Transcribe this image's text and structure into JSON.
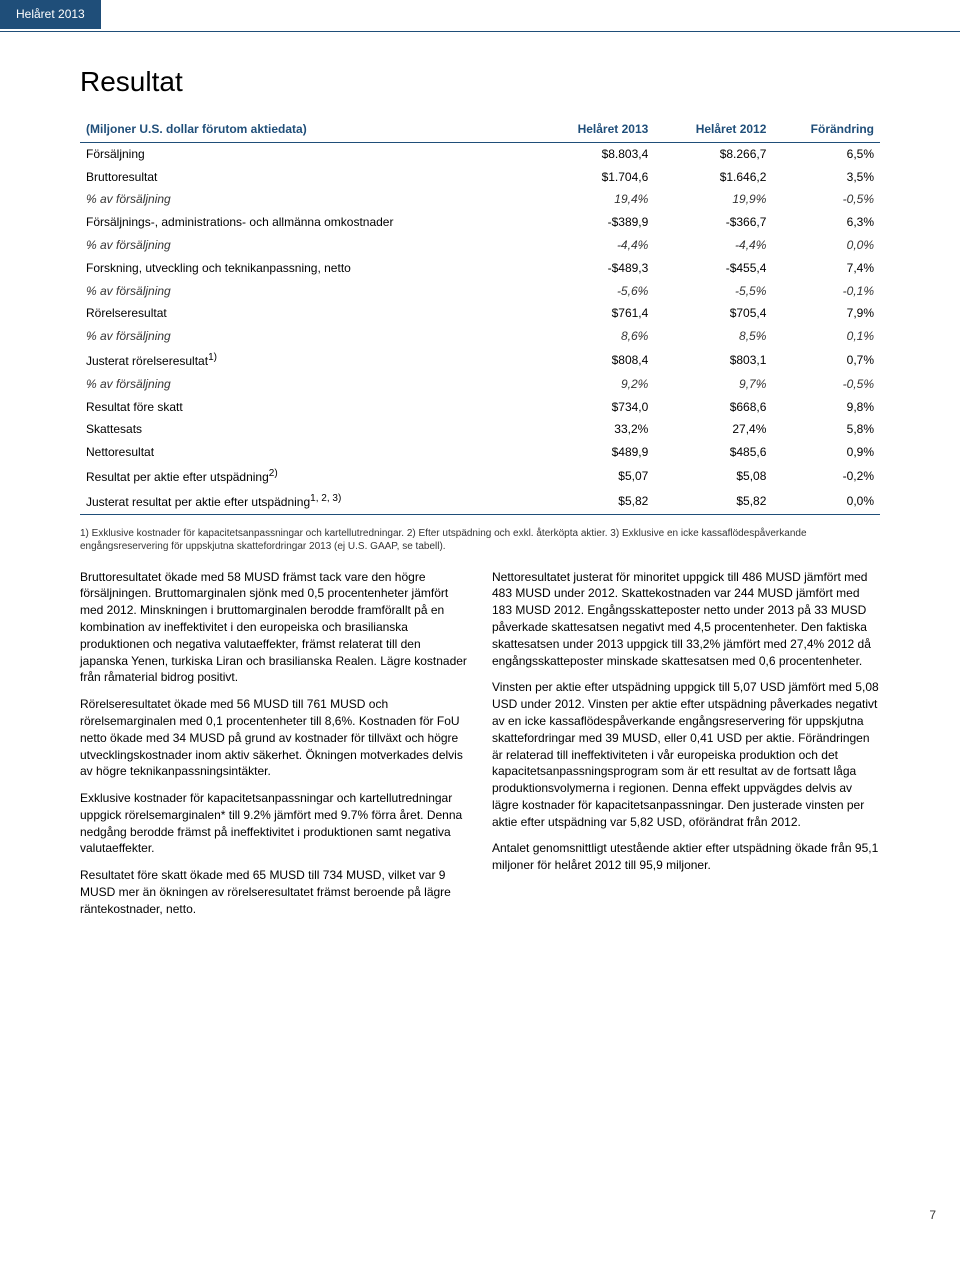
{
  "header": {
    "tab": "Helåret 2013"
  },
  "title": "Resultat",
  "table": {
    "type": "table",
    "header_color": "#1f4e79",
    "border_color": "#1f4e79",
    "columns": [
      "(Miljoner U.S. dollar förutom aktiedata)",
      "Helåret 2013",
      "Helåret 2012",
      "Förändring"
    ],
    "rows": [
      {
        "label": "Försäljning",
        "c1": "$8.803,4",
        "c2": "$8.266,7",
        "c3": "6,5%",
        "italic": false
      },
      {
        "label": "Bruttoresultat",
        "c1": "$1.704,6",
        "c2": "$1.646,2",
        "c3": "3,5%",
        "italic": false
      },
      {
        "label": "% av försäljning",
        "c1": "19,4%",
        "c2": "19,9%",
        "c3": "-0,5%",
        "italic": true
      },
      {
        "label": "Försäljnings-, administrations- och allmänna omkostnader",
        "c1": "-$389,9",
        "c2": "-$366,7",
        "c3": "6,3%",
        "italic": false
      },
      {
        "label": "% av försäljning",
        "c1": "-4,4%",
        "c2": "-4,4%",
        "c3": "0,0%",
        "italic": true
      },
      {
        "label": "Forskning, utveckling och teknikanpassning, netto",
        "c1": "-$489,3",
        "c2": "-$455,4",
        "c3": "7,4%",
        "italic": false
      },
      {
        "label": "% av försäljning",
        "c1": "-5,6%",
        "c2": "-5,5%",
        "c3": "-0,1%",
        "italic": true
      },
      {
        "label": "Rörelseresultat",
        "c1": "$761,4",
        "c2": "$705,4",
        "c3": "7,9%",
        "italic": false
      },
      {
        "label": "% av försäljning",
        "c1": "8,6%",
        "c2": "8,5%",
        "c3": "0,1%",
        "italic": true
      },
      {
        "label": "Justerat rörelseresultat",
        "sup": "1)",
        "c1": "$808,4",
        "c2": "$803,1",
        "c3": "0,7%",
        "italic": false
      },
      {
        "label": "% av försäljning",
        "c1": "9,2%",
        "c2": "9,7%",
        "c3": "-0,5%",
        "italic": true
      },
      {
        "label": "Resultat före skatt",
        "c1": "$734,0",
        "c2": "$668,6",
        "c3": "9,8%",
        "italic": false
      },
      {
        "label": "Skattesats",
        "c1": "33,2%",
        "c2": "27,4%",
        "c3": "5,8%",
        "italic": false
      },
      {
        "label": "Nettoresultat",
        "c1": "$489,9",
        "c2": "$485,6",
        "c3": "0,9%",
        "italic": false
      },
      {
        "label": "Resultat per aktie efter utspädning",
        "sup": "2)",
        "c1": "$5,07",
        "c2": "$5,08",
        "c3": "-0,2%",
        "italic": false
      },
      {
        "label": "Justerat resultat per aktie efter utspädning",
        "sup": "1, 2, 3)",
        "c1": "$5,82",
        "c2": "$5,82",
        "c3": "0,0%",
        "italic": false
      }
    ]
  },
  "footnote": "1) Exklusive kostnader för kapacitetsanpassningar och kartellutredningar. 2) Efter utspädning och exkl. återköpta aktier. 3) Exklusive en icke kassaflödespåverkande engångsreservering för uppskjutna skattefordringar 2013 (ej U.S. GAAP, se tabell).",
  "body": {
    "left": [
      "Bruttoresultatet ökade med 58 MUSD främst tack vare den högre försäljningen. Bruttomarginalen sjönk med 0,5 procentenheter jämfört med 2012. Minskningen i bruttomarginalen berodde framförallt på en kombination av ineffektivitet i den europeiska och brasilianska produktionen och negativa valutaeffekter, främst relaterat till den japanska Yenen, turkiska Liran och brasilianska Realen. Lägre kostnader från råmaterial bidrog positivt.",
      "Rörelseresultatet ökade med 56 MUSD till 761 MUSD och rörelsemarginalen med 0,1 procentenheter till 8,6%. Kostnaden för FoU netto ökade med 34 MUSD på grund av kostnader för tillväxt och högre utvecklingskostnader inom aktiv säkerhet. Ökningen motverkades delvis av högre teknikanpassningsintäkter.",
      "Exklusive kostnader för kapacitetsanpassningar och kartellutredningar uppgick rörelsemarginalen* till 9.2% jämfört med 9.7% förra året. Denna nedgång berodde främst på ineffektivitet i produktionen samt negativa valutaeffekter.",
      "Resultatet före skatt ökade med 65 MUSD till 734 MUSD, vilket var 9 MUSD mer än ökningen av rörelseresultatet främst beroende på lägre räntekostnader, netto."
    ],
    "right": [
      "Nettoresultatet justerat för minoritet uppgick till 486 MUSD jämfört med 483 MUSD under 2012. Skattekostnaden var 244 MUSD jämfört med 183 MUSD 2012. Engångsskatteposter netto under 2013 på 33 MUSD påverkade skattesatsen negativt med 4,5 procentenheter. Den faktiska skattesatsen under 2013 uppgick till 33,2% jämfört med 27,4% 2012 då engångsskatteposter minskade skattesatsen med 0,6 procentenheter.",
      "Vinsten per aktie efter utspädning uppgick till 5,07 USD jämfört med 5,08 USD under 2012. Vinsten per aktie efter utspädning påverkades negativt av en icke kassaflödespåverkande engångsreservering för uppskjutna skattefordringar med 39 MUSD, eller 0,41 USD per aktie. Förändringen är relaterad till ineffektiviteten i vår europeiska produktion och det kapacitetsanpassningsprogram som är ett resultat av de fortsatt låga produktionsvolymerna i regionen. Denna effekt uppvägdes delvis av lägre kostnader för kapacitetsanpassningar. Den justerade vinsten per aktie efter utspädning var 5,82 USD, oförändrat från 2012.",
      "Antalet genomsnittligt utestående aktier efter utspädning ökade från 95,1 miljoner för helåret 2012 till 95,9 miljoner."
    ]
  },
  "pagenum": "7"
}
